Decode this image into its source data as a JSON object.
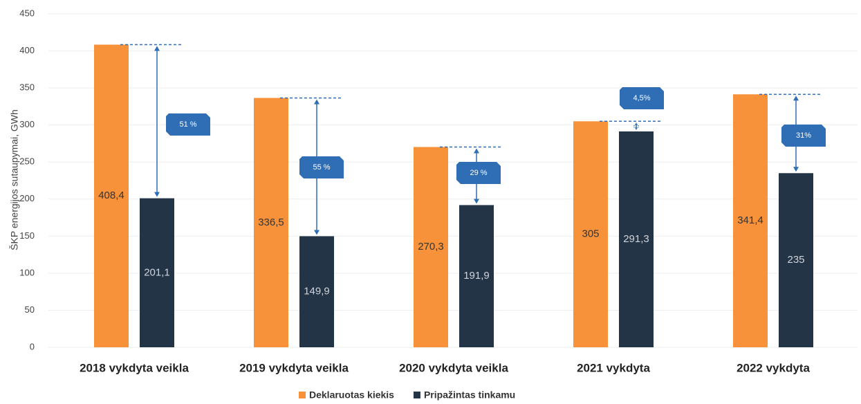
{
  "chart_data": {
    "type": "bar",
    "y_label": "ŠKP energijos sutaupymai, GWh",
    "categories": [
      "2018 vykdyta veikla",
      "2019 vykdyta veikla",
      "2020 vykdyta veikla",
      "2021 vykdyta",
      "2022 vykdyta"
    ],
    "series": [
      {
        "name": "Deklaruotas kiekis",
        "color": "#f7923a",
        "values": [
          408.4,
          336.5,
          270.3,
          305,
          341.4
        ],
        "value_labels": [
          "408,4",
          "336,5",
          "270,3",
          "305",
          "341,4"
        ]
      },
      {
        "name": "Pripažintas tinkamu",
        "color": "#243447",
        "values": [
          201.1,
          149.9,
          191.9,
          291.3,
          235
        ],
        "value_labels": [
          "201,1",
          "149,9",
          "191,9",
          "291,3",
          "235"
        ]
      }
    ],
    "annotations": [
      "51 %",
      "55 %",
      "29 %",
      "4,5%",
      "31%"
    ],
    "annotation_color": "#2f6db5",
    "ylim": [
      0,
      450
    ],
    "yticks": [
      0,
      50,
      100,
      150,
      200,
      250,
      300,
      350,
      400,
      450
    ],
    "grid": true
  }
}
